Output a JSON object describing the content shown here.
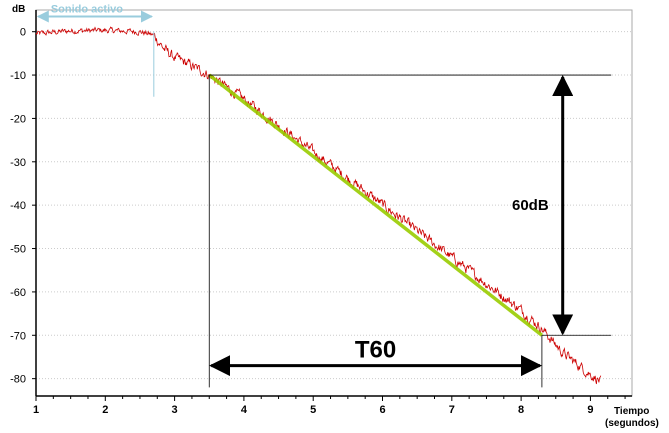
{
  "colors": {
    "decay_curve": "#cc0000",
    "regression": "#99cc00",
    "sonido_activo": "#99ccdd",
    "grid": "#cccccc",
    "axis": "#000000"
  },
  "chart_data": {
    "type": "line",
    "title": "",
    "ylabel": "dB",
    "xlabel": [
      "Tiempo",
      "(segundos)"
    ],
    "xlim": [
      1,
      9.6
    ],
    "ylim": [
      -84,
      5
    ],
    "x_ticks": [
      1,
      2,
      3,
      4,
      5,
      6,
      7,
      8,
      9
    ],
    "y_ticks": [
      0,
      -10,
      -20,
      -30,
      -40,
      -50,
      -60,
      -70,
      -80
    ],
    "grid": "horizontal dotted",
    "series": [
      {
        "style": "noisy red line",
        "points": [
          [
            1.0,
            -0.5
          ],
          [
            1.5,
            0.2
          ],
          [
            2.0,
            0.3
          ],
          [
            2.5,
            0.0
          ],
          [
            2.7,
            -0.8
          ],
          [
            2.85,
            -4.0
          ],
          [
            3.0,
            -6.0
          ],
          [
            3.2,
            -7.5
          ],
          [
            3.5,
            -10.0
          ],
          [
            4.0,
            -15.6
          ],
          [
            5.0,
            -27.7
          ],
          [
            6.0,
            -39.9
          ],
          [
            7.0,
            -52.0
          ],
          [
            8.0,
            -64.2
          ],
          [
            8.3,
            -68.5
          ],
          [
            8.6,
            -74.0
          ],
          [
            9.0,
            -79.0
          ],
          [
            9.15,
            -80.7
          ]
        ]
      },
      {
        "style": "green regression line",
        "points": [
          [
            3.5,
            -10.0
          ],
          [
            8.3,
            -70.0
          ]
        ]
      }
    ],
    "annotations": {
      "sonido_activo": {
        "label": "Sonido activo",
        "x_start": 1.0,
        "x_end": 2.7,
        "y": 3.5
      },
      "sixty_db": {
        "label": "60dB",
        "x": 8.6,
        "y_top": -10,
        "y_bottom": -70
      },
      "t60": {
        "label": "T60",
        "x_start": 3.5,
        "x_end": 8.3,
        "y": -77
      },
      "guides": {
        "top_line": {
          "y": -10,
          "x_from": 3.5,
          "x_to": 9.3
        },
        "bottom_line": {
          "y": -70,
          "x_from": 8.3,
          "x_to": 9.3
        },
        "left_vertical": {
          "x": 3.5,
          "y_from": -10,
          "y_to": -82
        },
        "right_vertical": {
          "x": 8.3,
          "y_from": -70,
          "y_to": -82
        },
        "sonido_end_mark": {
          "x": 2.7,
          "y_from": 0,
          "y_to": -15
        }
      }
    }
  }
}
